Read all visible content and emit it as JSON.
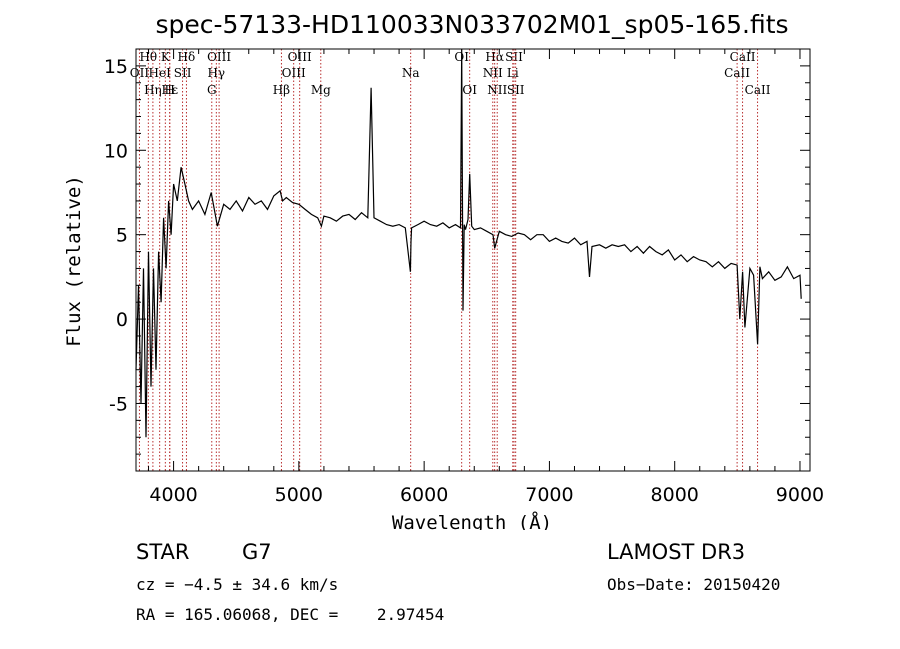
{
  "chart_data": {
    "type": "line",
    "title": "spec-57133-HD110033N033702M01_sp05-165.fits",
    "xlabel": "Wavelength (Å)",
    "ylabel": "Flux (relative)",
    "xlim": [
      3700,
      9080
    ],
    "ylim": [
      -9,
      16
    ],
    "xticks": [
      4000,
      5000,
      6000,
      7000,
      8000,
      9000
    ],
    "yticks": [
      -5,
      0,
      5,
      10,
      15
    ],
    "series": [
      {
        "name": "spectrum",
        "x": [
          3700,
          3720,
          3740,
          3760,
          3780,
          3800,
          3820,
          3840,
          3860,
          3880,
          3900,
          3920,
          3940,
          3960,
          3980,
          4000,
          4030,
          4060,
          4090,
          4120,
          4150,
          4200,
          4250,
          4300,
          4350,
          4400,
          4450,
          4500,
          4550,
          4600,
          4650,
          4700,
          4750,
          4800,
          4850,
          4870,
          4900,
          4950,
          5000,
          5050,
          5100,
          5150,
          5180,
          5200,
          5250,
          5300,
          5350,
          5400,
          5450,
          5500,
          5550,
          5577,
          5600,
          5650,
          5700,
          5750,
          5800,
          5850,
          5890,
          5895,
          5900,
          5950,
          6000,
          6050,
          6100,
          6150,
          6200,
          6250,
          6290,
          6300,
          6310,
          6320,
          6330,
          6350,
          6364,
          6380,
          6400,
          6450,
          6500,
          6550,
          6563,
          6600,
          6650,
          6700,
          6750,
          6800,
          6850,
          6900,
          6950,
          7000,
          7050,
          7100,
          7150,
          7200,
          7250,
          7300,
          7320,
          7340,
          7400,
          7450,
          7500,
          7550,
          7600,
          7650,
          7700,
          7750,
          7800,
          7850,
          7900,
          7950,
          8000,
          8050,
          8100,
          8150,
          8200,
          8250,
          8300,
          8350,
          8400,
          8450,
          8498,
          8520,
          8542,
          8560,
          8600,
          8630,
          8662,
          8680,
          8700,
          8750,
          8800,
          8850,
          8900,
          8950,
          9000,
          9010
        ],
        "values": [
          -3,
          2,
          -5,
          3,
          -7,
          4,
          -4,
          3,
          -3,
          4,
          1,
          6,
          3,
          7,
          5,
          8,
          7,
          9,
          8,
          7,
          6.5,
          7,
          6.2,
          7.5,
          5.5,
          6.8,
          6.5,
          7,
          6.4,
          7.2,
          6.8,
          7,
          6.5,
          7.3,
          7.6,
          7.0,
          7.2,
          6.9,
          6.8,
          6.5,
          6.2,
          6.0,
          5.5,
          6.1,
          6.0,
          5.8,
          6.1,
          6.2,
          5.9,
          6.3,
          6.0,
          13.7,
          6.0,
          5.8,
          5.6,
          5.5,
          5.6,
          5.4,
          2.8,
          4.6,
          5.4,
          5.6,
          5.8,
          5.6,
          5.5,
          5.7,
          5.4,
          5.6,
          5.4,
          16,
          0.5,
          5.6,
          5.3,
          5.9,
          8.6,
          5.5,
          5.3,
          5.4,
          5.2,
          5.0,
          4.2,
          5.2,
          5.0,
          4.9,
          5.1,
          5.0,
          4.7,
          5.0,
          5.0,
          4.6,
          4.8,
          4.6,
          4.5,
          4.8,
          4.4,
          4.6,
          2.5,
          4.3,
          4.4,
          4.2,
          4.4,
          4.3,
          4.4,
          4.0,
          4.3,
          3.9,
          4.3,
          4.0,
          3.8,
          4.1,
          3.5,
          3.8,
          3.4,
          3.7,
          3.5,
          3.4,
          3.1,
          3.4,
          3.0,
          3.3,
          3.2,
          0,
          2.8,
          -0.5,
          3.0,
          2.6,
          -1.5,
          3.1,
          2.4,
          2.8,
          2.3,
          2.5,
          3.1,
          2.4,
          2.6,
          1.2
        ]
      }
    ],
    "spectral_lines": [
      {
        "label": "Hθ",
        "wavelength": 3798,
        "row": 1
      },
      {
        "label": "OII",
        "wavelength": 3727,
        "row": 2
      },
      {
        "label": "Hη",
        "wavelength": 3835,
        "row": 3
      },
      {
        "label": "K",
        "wavelength": 3934,
        "row": 1
      },
      {
        "label": "HeI",
        "wavelength": 3889,
        "row": 2
      },
      {
        "label": "SII",
        "wavelength": 4072,
        "row": 2
      },
      {
        "label": "Hε",
        "wavelength": 3970,
        "row": 3
      },
      {
        "label": "H",
        "wavelength": 3969,
        "row": 3
      },
      {
        "label": "Hδ",
        "wavelength": 4102,
        "row": 1
      },
      {
        "label": "OIII",
        "wavelength": 4363,
        "row": 1
      },
      {
        "label": "Hγ",
        "wavelength": 4341,
        "row": 2
      },
      {
        "label": "G",
        "wavelength": 4305,
        "row": 3
      },
      {
        "label": "Hβ",
        "wavelength": 4861,
        "row": 3
      },
      {
        "label": "OIII",
        "wavelength": 5007,
        "row": 1
      },
      {
        "label": "OIII",
        "wavelength": 4959,
        "row": 2
      },
      {
        "label": "Mg",
        "wavelength": 5175,
        "row": 3
      },
      {
        "label": "Na",
        "wavelength": 5893,
        "row": 2
      },
      {
        "label": "OI",
        "wavelength": 6300,
        "row": 1
      },
      {
        "label": "OI",
        "wavelength": 6364,
        "row": 3
      },
      {
        "label": "Hα",
        "wavelength": 6563,
        "row": 1
      },
      {
        "label": "NII",
        "wavelength": 6548,
        "row": 2
      },
      {
        "label": "NII",
        "wavelength": 6583,
        "row": 3
      },
      {
        "label": "SII",
        "wavelength": 6717,
        "row": 1
      },
      {
        "label": "Li",
        "wavelength": 6708,
        "row": 2
      },
      {
        "label": "SII",
        "wavelength": 6731,
        "row": 3
      },
      {
        "label": "CaII",
        "wavelength": 8542,
        "row": 1
      },
      {
        "label": "CaII",
        "wavelength": 8498,
        "row": 2
      },
      {
        "label": "CaII",
        "wavelength": 8662,
        "row": 3
      }
    ]
  },
  "info": {
    "object_class": "STAR",
    "subclass": "G7",
    "survey": "LAMOST DR3",
    "cz": "cz = −4.5 ± 34.6 km/s",
    "obs_date": "Obs−Date: 20150420",
    "coords": "RA = 165.06068, DEC =    2.97454"
  },
  "colors": {
    "spectrum": "#000000",
    "line_markers": "#b01818"
  }
}
